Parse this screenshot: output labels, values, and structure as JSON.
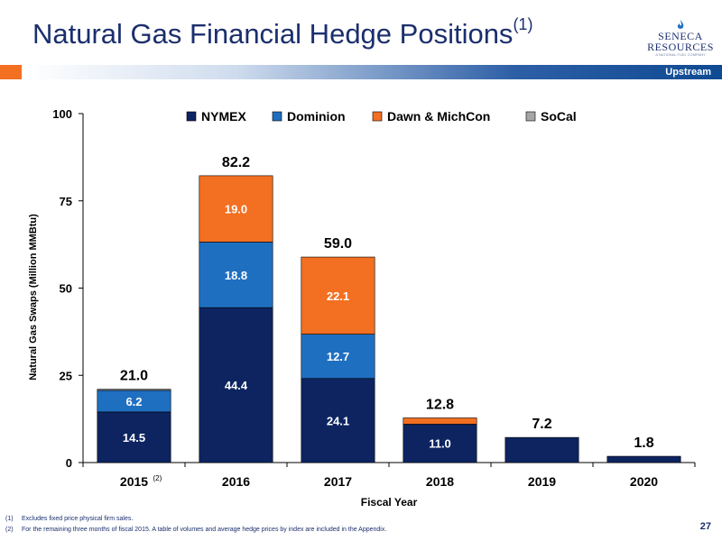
{
  "header": {
    "title": "Natural Gas Financial Hedge Positions",
    "title_sup": "(1)",
    "logo_top": "SENECA",
    "logo_bottom": "RESOURCES",
    "logo_sub": "A NATIONAL FUEL COMPANY",
    "section_label": "Upstream"
  },
  "colors": {
    "NYMEX": "#0d2461",
    "Dominion": "#1f6fc1",
    "Dawn & MichCon": "#f36f21",
    "SoCal": "#a6a6a6",
    "accent_orange": "#f36f21",
    "brand_navy": "#1b2f6e"
  },
  "chart_data": {
    "type": "bar",
    "stacked": true,
    "categories": [
      "2015",
      "2016",
      "2017",
      "2018",
      "2019",
      "2020"
    ],
    "category_notes": [
      "(2)",
      "",
      "",
      "",
      "",
      ""
    ],
    "series": [
      {
        "name": "NYMEX",
        "values": [
          14.5,
          44.4,
          24.1,
          11.0,
          7.2,
          1.8
        ],
        "labels": [
          "14.5",
          "44.4",
          "24.1",
          "11.0",
          "",
          ""
        ]
      },
      {
        "name": "Dominion",
        "values": [
          6.2,
          18.8,
          12.7,
          0,
          0,
          0
        ],
        "labels": [
          "6.2",
          "18.8",
          "12.7",
          "",
          "",
          ""
        ]
      },
      {
        "name": "Dawn & MichCon",
        "values": [
          0,
          19.0,
          22.1,
          1.8,
          0,
          0
        ],
        "labels": [
          "",
          "19.0",
          "22.1",
          "",
          "",
          ""
        ]
      },
      {
        "name": "SoCal",
        "values": [
          0.3,
          0,
          0,
          0,
          0,
          0
        ],
        "labels": [
          "",
          "",
          "",
          "",
          "",
          ""
        ]
      }
    ],
    "totals": [
      "21.0",
      "82.2",
      "59.0",
      "12.8",
      "7.2",
      "1.8"
    ],
    "xlabel": "Fiscal Year",
    "ylabel": "Natural Gas Swaps (Million MMBtu)",
    "ylim": [
      0,
      100
    ],
    "yticks": [
      "0",
      "25",
      "50",
      "75",
      "100"
    ],
    "legend_position": "top",
    "grid": false
  },
  "footnotes": [
    {
      "mark": "(1)",
      "text": "Excludes fixed price physical firm sales."
    },
    {
      "mark": "(2)",
      "text": "For the remaining three months of fiscal 2015. A table of volumes and average hedge prices by index are included in the Appendix."
    }
  ],
  "page_number": "27"
}
